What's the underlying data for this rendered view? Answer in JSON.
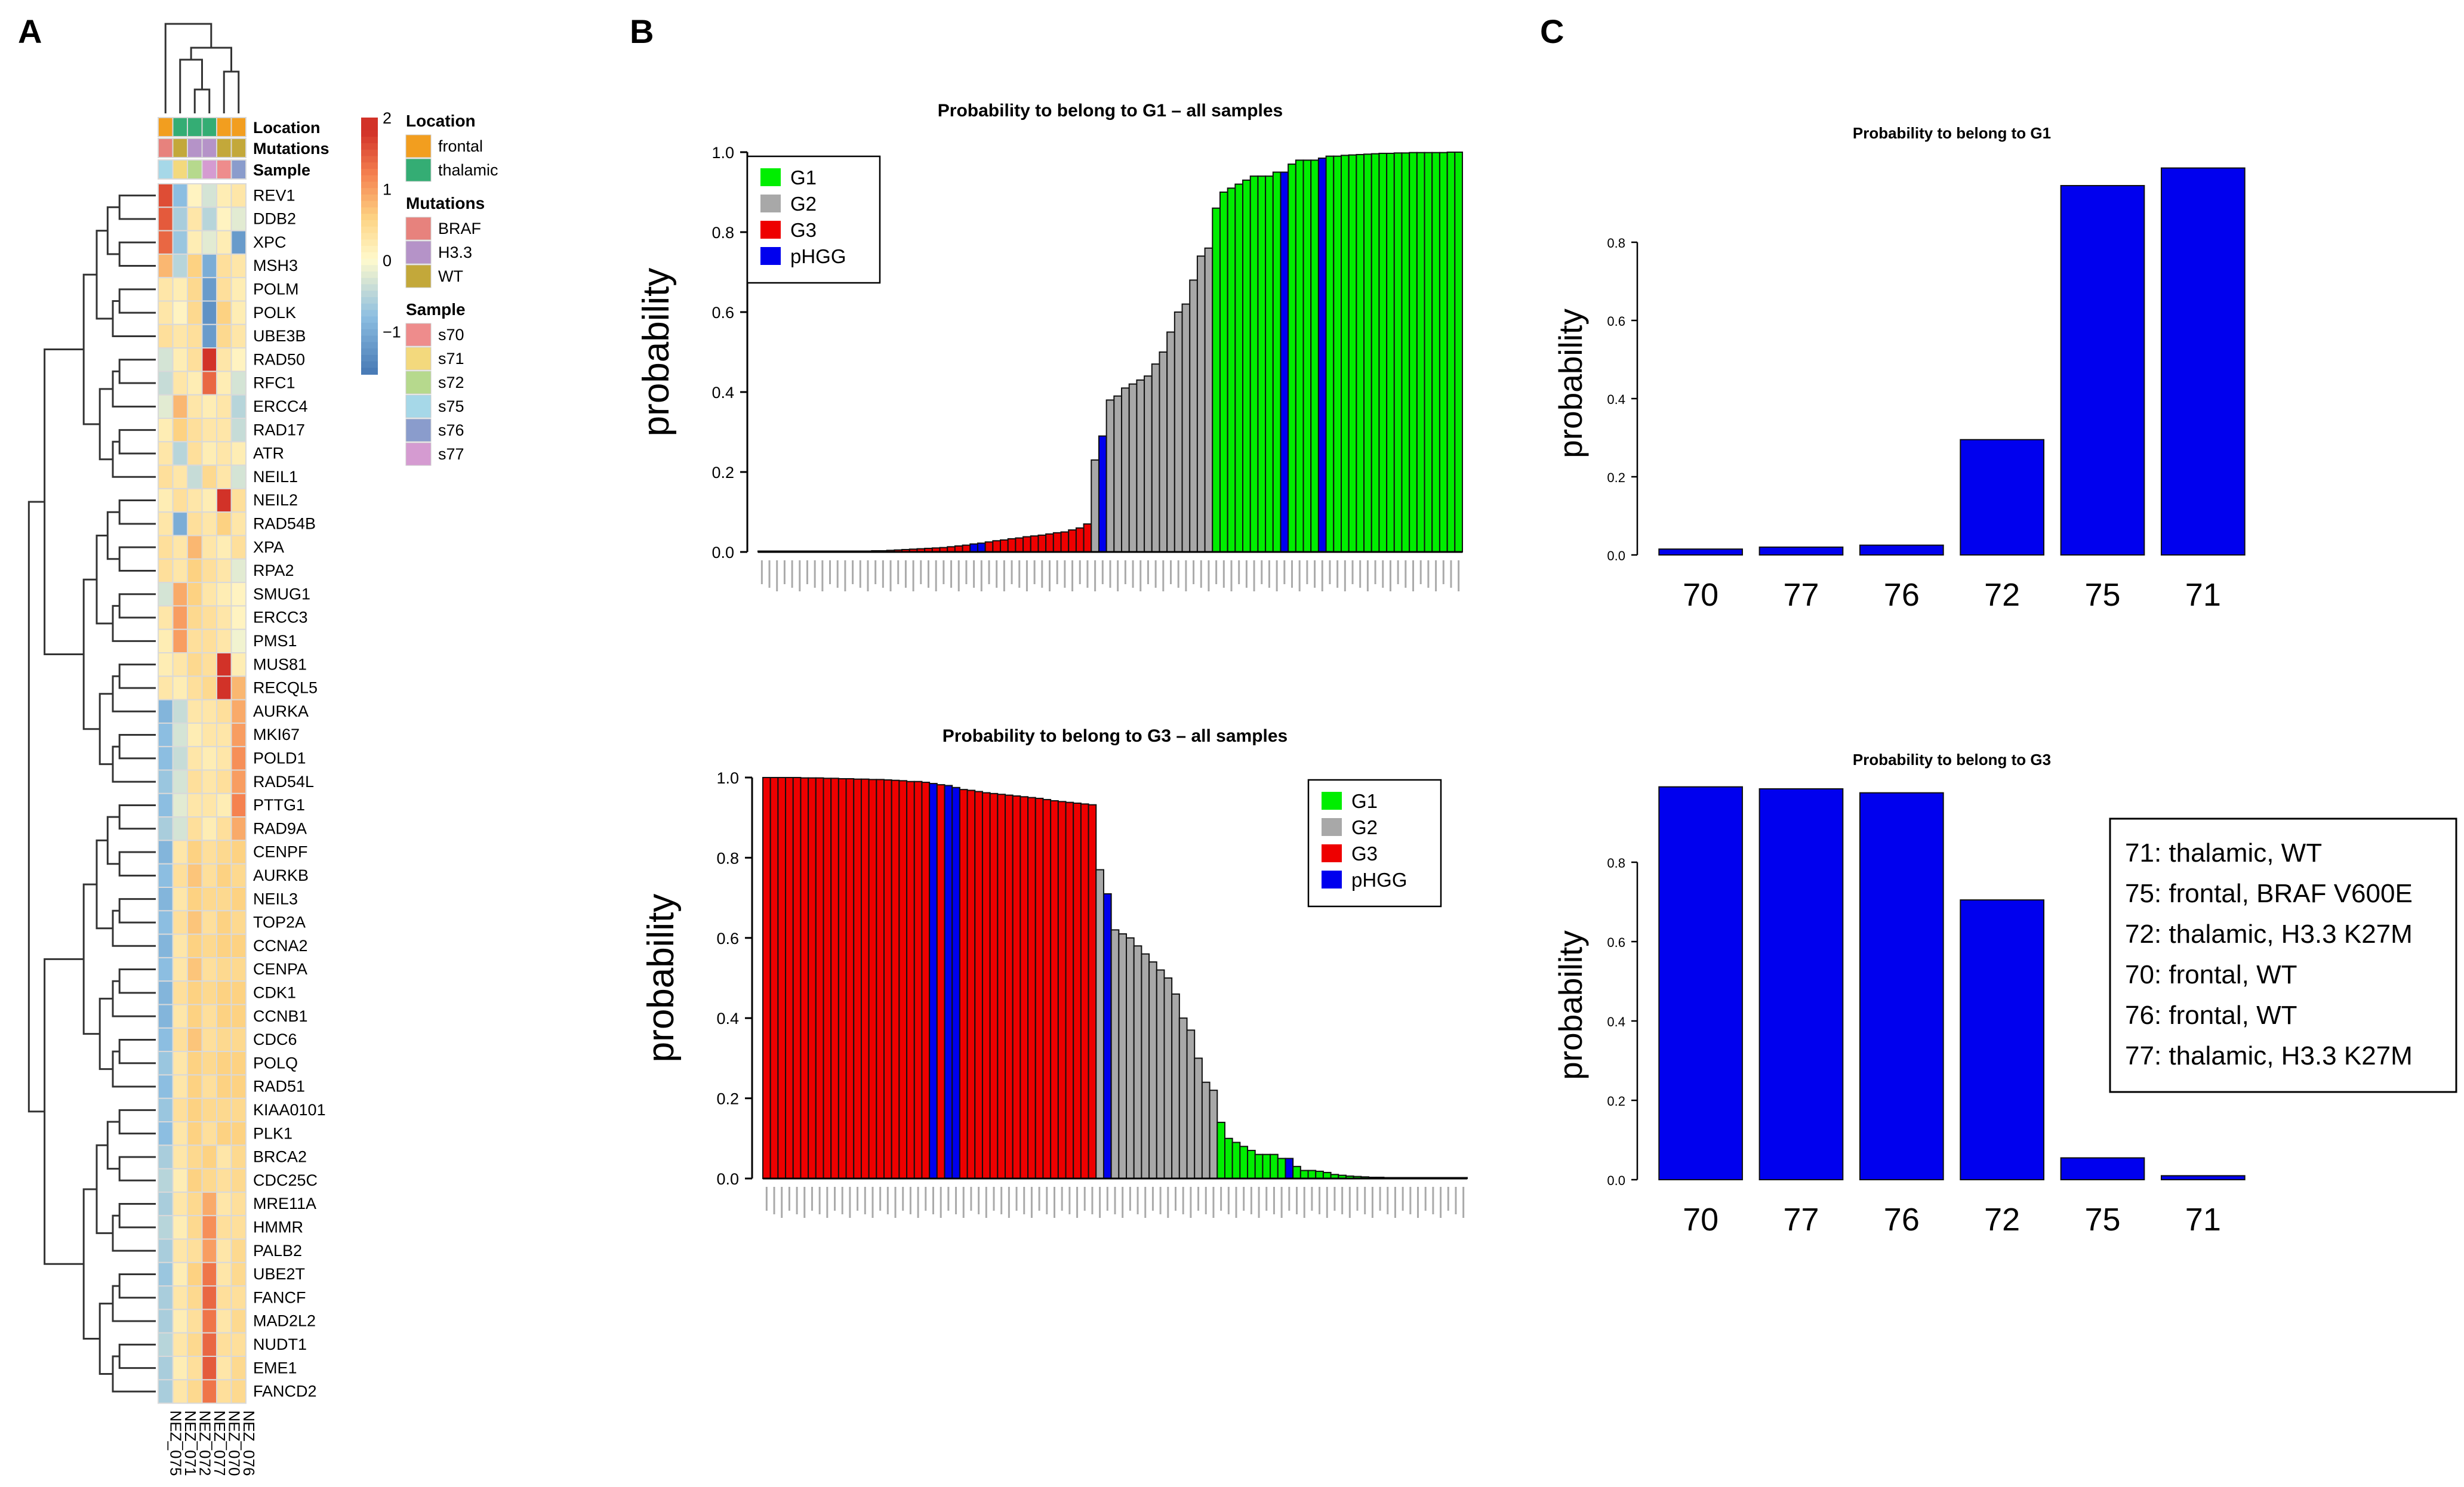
{
  "panels": {
    "a": "A",
    "b": "B",
    "c": "C"
  },
  "heatmap": {
    "genes": [
      "REV1",
      "DDB2",
      "XPC",
      "MSH3",
      "POLM",
      "POLK",
      "UBE3B",
      "RAD50",
      "RFC1",
      "ERCC4",
      "RAD17",
      "ATR",
      "NEIL1",
      "NEIL2",
      "RAD54B",
      "XPA",
      "RPA2",
      "SMUG1",
      "ERCC3",
      "PMS1",
      "MUS81",
      "RECQL5",
      "AURKA",
      "MKI67",
      "POLD1",
      "RAD54L",
      "PTTG1",
      "RAD9A",
      "CENPF",
      "AURKB",
      "NEIL3",
      "TOP2A",
      "CCNA2",
      "CENPA",
      "CDK1",
      "CCNB1",
      "CDC6",
      "POLQ",
      "RAD51",
      "KIAA0101",
      "PLK1",
      "BRCA2",
      "CDC25C",
      "MRE11A",
      "HMMR",
      "PALB2",
      "UBE2T",
      "FANCF",
      "MAD2L2",
      "NUDT1",
      "EME1",
      "FANCD2"
    ],
    "samples": [
      "NEZ_075",
      "NEZ_071",
      "NEZ_072",
      "NEZ_077",
      "NEZ_070",
      "NEZ_076"
    ],
    "matrix": [
      [
        1.6,
        -0.8,
        0.1,
        -0.3,
        0.2,
        0.3
      ],
      [
        1.5,
        -0.6,
        0.3,
        -0.5,
        0.1,
        -0.2
      ],
      [
        1.4,
        -0.7,
        0.2,
        -0.2,
        0.2,
        -1.2
      ],
      [
        0.8,
        -0.5,
        0.6,
        -1.0,
        0.4,
        0.3
      ],
      [
        0.3,
        0.2,
        0.5,
        -1.2,
        0.4,
        0.2
      ],
      [
        0.3,
        0.1,
        0.5,
        -1.3,
        0.6,
        0.2
      ],
      [
        0.4,
        0.3,
        0.4,
        -1.2,
        0.5,
        0.3
      ],
      [
        -0.3,
        0.2,
        0.4,
        1.8,
        0.3,
        0.1
      ],
      [
        -0.4,
        0.3,
        0.2,
        1.4,
        0.2,
        -0.3
      ],
      [
        -0.2,
        0.8,
        0.3,
        0.2,
        0.3,
        -0.5
      ],
      [
        0.2,
        0.6,
        0.4,
        0.3,
        0.3,
        -0.4
      ],
      [
        0.3,
        -0.5,
        0.4,
        0.2,
        0.3,
        0.2
      ],
      [
        0.4,
        0.3,
        -0.4,
        0.5,
        0.3,
        -0.3
      ],
      [
        0.2,
        0.4,
        0.3,
        0.2,
        1.9,
        0.4
      ],
      [
        0.3,
        -1.0,
        0.4,
        0.3,
        0.6,
        0.3
      ],
      [
        0.4,
        0.3,
        0.8,
        0.3,
        0.2,
        0.4
      ],
      [
        0.4,
        0.3,
        0.6,
        0.4,
        0.3,
        -0.2
      ],
      [
        -0.3,
        0.9,
        0.6,
        0.3,
        0.2,
        0.1
      ],
      [
        0.3,
        1.0,
        0.5,
        0.4,
        0.3,
        0.1
      ],
      [
        0.2,
        1.0,
        0.4,
        0.4,
        0.3,
        -0.1
      ],
      [
        0.2,
        0.3,
        0.5,
        0.4,
        1.8,
        0.2
      ],
      [
        0.3,
        0.2,
        0.4,
        0.5,
        1.9,
        0.8
      ],
      [
        -0.9,
        -0.4,
        0.3,
        0.3,
        0.4,
        0.9
      ],
      [
        -0.8,
        -0.3,
        0.2,
        0.3,
        0.3,
        1.0
      ],
      [
        -0.8,
        -0.4,
        0.3,
        0.2,
        0.3,
        1.1
      ],
      [
        -0.7,
        -0.3,
        0.4,
        0.3,
        0.4,
        1.0
      ],
      [
        -0.8,
        -0.2,
        0.3,
        0.3,
        0.2,
        1.2
      ],
      [
        -0.6,
        -0.3,
        0.4,
        0.2,
        0.4,
        0.9
      ],
      [
        -0.9,
        0.3,
        0.6,
        0.4,
        0.5,
        0.6
      ],
      [
        -0.8,
        0.4,
        0.7,
        0.4,
        0.6,
        0.5
      ],
      [
        -0.9,
        0.3,
        0.6,
        0.5,
        0.5,
        0.6
      ],
      [
        -0.8,
        0.4,
        0.7,
        0.4,
        0.6,
        0.5
      ],
      [
        -0.9,
        0.3,
        0.6,
        0.5,
        0.6,
        0.6
      ],
      [
        -0.8,
        0.3,
        0.7,
        0.4,
        0.5,
        0.5
      ],
      [
        -0.9,
        0.4,
        0.6,
        0.5,
        0.6,
        0.6
      ],
      [
        -0.9,
        0.3,
        0.6,
        0.4,
        0.6,
        0.6
      ],
      [
        -0.8,
        0.4,
        0.7,
        0.4,
        0.5,
        0.5
      ],
      [
        -0.7,
        0.3,
        0.6,
        0.5,
        0.6,
        0.6
      ],
      [
        -0.8,
        0.3,
        0.6,
        0.4,
        0.6,
        0.6
      ],
      [
        -0.7,
        0.4,
        0.6,
        0.5,
        0.5,
        0.5
      ],
      [
        -0.8,
        0.3,
        0.6,
        0.4,
        0.6,
        0.6
      ],
      [
        -0.6,
        0.3,
        0.5,
        0.6,
        0.3,
        0.5
      ],
      [
        -0.5,
        0.2,
        0.6,
        0.5,
        0.4,
        0.5
      ],
      [
        -0.6,
        0.3,
        0.5,
        0.9,
        0.3,
        0.4
      ],
      [
        -0.5,
        0.2,
        0.5,
        1.1,
        0.4,
        0.4
      ],
      [
        -0.6,
        0.3,
        0.4,
        1.0,
        0.3,
        0.5
      ],
      [
        -0.7,
        0.2,
        0.6,
        1.3,
        0.3,
        0.5
      ],
      [
        -0.6,
        0.3,
        0.5,
        1.4,
        0.4,
        0.4
      ],
      [
        -0.6,
        0.2,
        0.4,
        1.3,
        0.3,
        0.5
      ],
      [
        -0.5,
        0.3,
        0.5,
        1.4,
        0.4,
        0.4
      ],
      [
        -0.6,
        0.2,
        0.4,
        1.5,
        0.3,
        0.5
      ],
      [
        -0.6,
        0.3,
        0.5,
        1.3,
        0.4,
        0.5
      ]
    ],
    "annotation_rows": [
      "Location",
      "Mutations",
      "Sample"
    ],
    "location_colors": [
      "#f29e1f",
      "#34ad74",
      "#34ad74",
      "#34ad74",
      "#f29e1f",
      "#f29e1f"
    ],
    "mutation_colors": [
      "#e7827d",
      "#c3a83a",
      "#b593c8",
      "#b593c8",
      "#c3a83a",
      "#c3a83a"
    ],
    "sample_colors": [
      "#a6d8e8",
      "#f3d97d",
      "#b6d98d",
      "#d59bd1",
      "#ee8c8c",
      "#8a9ccc"
    ],
    "scale_ticks": [
      "2",
      "1",
      "0",
      "−1"
    ],
    "legend": {
      "location_title": "Location",
      "location": [
        {
          "label": "frontal",
          "color": "#f29e1f"
        },
        {
          "label": "thalamic",
          "color": "#34ad74"
        }
      ],
      "mutations_title": "Mutations",
      "mutations": [
        {
          "label": "BRAF",
          "color": "#e7827d"
        },
        {
          "label": "H3.3",
          "color": "#b593c8"
        },
        {
          "label": "WT",
          "color": "#c3a83a"
        }
      ],
      "sample_title": "Sample",
      "sample": [
        {
          "label": "s70",
          "color": "#ee8c8c"
        },
        {
          "label": "s71",
          "color": "#f3d97d"
        },
        {
          "label": "s72",
          "color": "#b6d98d"
        },
        {
          "label": "s75",
          "color": "#a6d8e8"
        },
        {
          "label": "s76",
          "color": "#8a9ccc"
        },
        {
          "label": "s77",
          "color": "#d59bd1"
        }
      ]
    }
  },
  "chart_data": [
    {
      "id": "b-top",
      "type": "bar",
      "title": "Probability to belong to G1 – all samples",
      "ylabel": "probability",
      "ylim": [
        0,
        1
      ],
      "yticks": [
        "0.0",
        "0.2",
        "0.4",
        "0.6",
        "0.8",
        "1.0"
      ],
      "legend": [
        {
          "label": "G1",
          "color": "#00ee00"
        },
        {
          "label": "G2",
          "color": "#a8a8a8"
        },
        {
          "label": "G3",
          "color": "#ee0000"
        },
        {
          "label": "pHGG",
          "color": "#0000ee"
        }
      ],
      "groups": [
        "G3",
        "G3",
        "G3",
        "G3",
        "G3",
        "G3",
        "G3",
        "G3",
        "G3",
        "G3",
        "G3",
        "G3",
        "G3",
        "G3",
        "G3",
        "G3",
        "G3",
        "G3",
        "G3",
        "G3",
        "G3",
        "G3",
        "G3",
        "G3",
        "G3",
        "G3",
        "G3",
        "G3",
        "pHGG",
        "pHGG",
        "G3",
        "G3",
        "G3",
        "G3",
        "G3",
        "G3",
        "G3",
        "G3",
        "G3",
        "G3",
        "G3",
        "G3",
        "G3",
        "G3",
        "G2",
        "pHGG",
        "G2",
        "G2",
        "G2",
        "G2",
        "G2",
        "G2",
        "G2",
        "G2",
        "G2",
        "G2",
        "G2",
        "G2",
        "G2",
        "G2",
        "G1",
        "G1",
        "G1",
        "G1",
        "G1",
        "G1",
        "G1",
        "G1",
        "G1",
        "pHGG",
        "G1",
        "G1",
        "G1",
        "G1",
        "pHGG",
        "G1",
        "G1",
        "G1",
        "G1",
        "G1",
        "G1",
        "G1",
        "G1",
        "G1",
        "G1",
        "G1",
        "G1",
        "G1",
        "G1",
        "G1",
        "G1",
        "G1",
        "G1"
      ],
      "values": [
        0.0,
        0.0,
        0.0,
        0.0,
        0.0,
        0.0,
        0.0,
        0.0,
        0.0,
        0.0,
        0.001,
        0.001,
        0.001,
        0.002,
        0.002,
        0.003,
        0.003,
        0.004,
        0.005,
        0.006,
        0.007,
        0.008,
        0.009,
        0.01,
        0.011,
        0.013,
        0.015,
        0.017,
        0.02,
        0.022,
        0.025,
        0.028,
        0.03,
        0.033,
        0.035,
        0.038,
        0.04,
        0.042,
        0.045,
        0.048,
        0.05,
        0.055,
        0.06,
        0.07,
        0.23,
        0.29,
        0.38,
        0.39,
        0.41,
        0.42,
        0.43,
        0.44,
        0.47,
        0.5,
        0.55,
        0.6,
        0.62,
        0.68,
        0.74,
        0.76,
        0.86,
        0.9,
        0.91,
        0.92,
        0.93,
        0.94,
        0.94,
        0.94,
        0.95,
        0.95,
        0.97,
        0.98,
        0.98,
        0.98,
        0.985,
        0.99,
        0.99,
        0.992,
        0.993,
        0.994,
        0.995,
        0.996,
        0.997,
        0.997,
        0.998,
        0.998,
        0.999,
        0.999,
        0.999,
        0.999,
        0.999,
        1.0,
        1.0
      ]
    },
    {
      "id": "b-bottom",
      "type": "bar",
      "title": "Probability to belong to G3 – all samples",
      "ylabel": "probability",
      "ylim": [
        0,
        1
      ],
      "yticks": [
        "0.0",
        "0.2",
        "0.4",
        "0.6",
        "0.8",
        "1.0"
      ],
      "legend": [
        {
          "label": "G1",
          "color": "#00ee00"
        },
        {
          "label": "G2",
          "color": "#a8a8a8"
        },
        {
          "label": "G3",
          "color": "#ee0000"
        },
        {
          "label": "pHGG",
          "color": "#0000ee"
        }
      ],
      "groups": [
        "G3",
        "G3",
        "G3",
        "G3",
        "G3",
        "G3",
        "G3",
        "G3",
        "G3",
        "G3",
        "G3",
        "G3",
        "G3",
        "G3",
        "G3",
        "G3",
        "G3",
        "G3",
        "G3",
        "G3",
        "G3",
        "G3",
        "pHGG",
        "G3",
        "pHGG",
        "pHGG",
        "G3",
        "G3",
        "G3",
        "G3",
        "G3",
        "G3",
        "G3",
        "G3",
        "G3",
        "G3",
        "G3",
        "G3",
        "G3",
        "G3",
        "G3",
        "G3",
        "G3",
        "G3",
        "G2",
        "pHGG",
        "G2",
        "G2",
        "G2",
        "G2",
        "G2",
        "G2",
        "G2",
        "G2",
        "G2",
        "G2",
        "G2",
        "G2",
        "G2",
        "G2",
        "G1",
        "G1",
        "G1",
        "G1",
        "G1",
        "G1",
        "G1",
        "G1",
        "G1",
        "pHGG",
        "G1",
        "G1",
        "G1",
        "G1",
        "G1",
        "G1",
        "G1",
        "G1",
        "G1",
        "G1",
        "G1",
        "G1",
        "G1",
        "G1",
        "G1",
        "G1",
        "G1",
        "G1",
        "G1",
        "G1",
        "G1",
        "G1",
        "G1"
      ],
      "values": [
        1.0,
        1.0,
        1.0,
        1.0,
        1.0,
        0.999,
        0.999,
        0.999,
        0.998,
        0.998,
        0.997,
        0.997,
        0.996,
        0.996,
        0.995,
        0.995,
        0.994,
        0.993,
        0.992,
        0.99,
        0.99,
        0.988,
        0.985,
        0.982,
        0.98,
        0.975,
        0.97,
        0.968,
        0.965,
        0.962,
        0.96,
        0.958,
        0.956,
        0.954,
        0.952,
        0.95,
        0.948,
        0.945,
        0.942,
        0.94,
        0.938,
        0.936,
        0.934,
        0.932,
        0.77,
        0.71,
        0.62,
        0.61,
        0.6,
        0.58,
        0.56,
        0.54,
        0.52,
        0.5,
        0.46,
        0.4,
        0.37,
        0.3,
        0.24,
        0.22,
        0.14,
        0.1,
        0.09,
        0.08,
        0.07,
        0.06,
        0.06,
        0.06,
        0.05,
        0.05,
        0.03,
        0.02,
        0.02,
        0.018,
        0.015,
        0.01,
        0.008,
        0.006,
        0.005,
        0.004,
        0.003,
        0.003,
        0.002,
        0.002,
        0.001,
        0.001,
        0.001,
        0.001,
        0.0,
        0.0,
        0.0,
        0.0,
        0.0
      ]
    },
    {
      "id": "c-top",
      "type": "bar",
      "title": "Probability to belong to G1",
      "ylabel": "probability",
      "ylim": [
        0,
        1
      ],
      "yticks": [
        "0.0",
        "0.2",
        "0.4",
        "0.6",
        "0.8"
      ],
      "categories": [
        "70",
        "77",
        "76",
        "72",
        "75",
        "71"
      ],
      "values": [
        0.015,
        0.02,
        0.025,
        0.295,
        0.945,
        0.99
      ],
      "color": "#0000ee"
    },
    {
      "id": "c-bottom",
      "type": "bar",
      "title": "Probability to belong to G3",
      "ylabel": "probability",
      "ylim": [
        0,
        1
      ],
      "yticks": [
        "0.0",
        "0.2",
        "0.4",
        "0.6",
        "0.8"
      ],
      "categories": [
        "70",
        "77",
        "76",
        "72",
        "75",
        "71"
      ],
      "values": [
        0.99,
        0.985,
        0.975,
        0.705,
        0.055,
        0.01
      ],
      "color": "#0000ee",
      "legend_text": [
        "71: thalamic, WT",
        "75: frontal, BRAF V600E",
        "72: thalamic, H3.3 K27M",
        "70: frontal, WT",
        "76: frontal, WT",
        "77: thalamic, H3.3 K27M"
      ]
    }
  ]
}
